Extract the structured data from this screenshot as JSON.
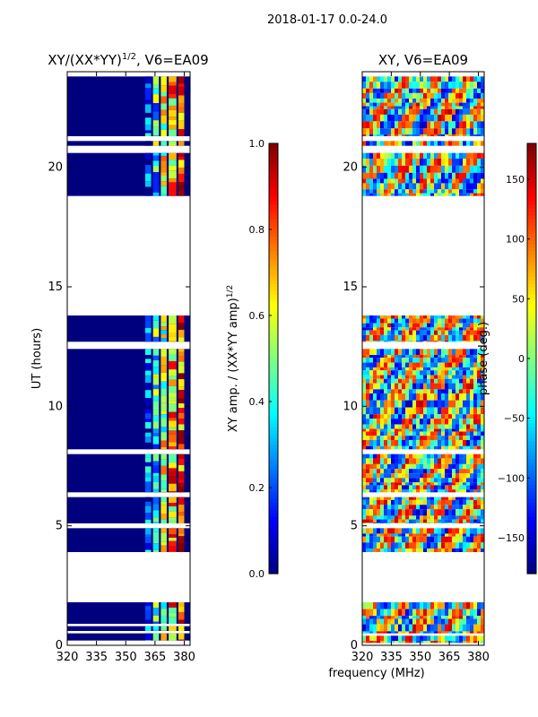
{
  "figure": {
    "suptitle": "2018-01-17 0.0-24.0",
    "common_xlabel": "frequency (MHz)",
    "colorscale": "jet",
    "colorscale_stops": [
      "#00007f",
      "#0000ff",
      "#007fff",
      "#00ffff",
      "#7fff7f",
      "#ffff00",
      "#ff7f00",
      "#ff0000",
      "#7f0000"
    ],
    "masked_color": "#ffffff",
    "frame_color": "#000000"
  },
  "chart_data": [
    {
      "type": "heatmap",
      "title_main": "XY/(XX*YY)",
      "title_exp": "1/2",
      "title_suffix": ", V6=EA09",
      "xlabel": "",
      "ylabel": "UT (hours)",
      "xlim": [
        320,
        383
      ],
      "ylim": [
        0,
        24
      ],
      "xticks": [
        320,
        335,
        350,
        365,
        380
      ],
      "yticks": [
        0,
        5,
        10,
        15,
        20
      ],
      "colorbar": {
        "label_main": "XY amp. / (XX*YY amp)",
        "label_exp": "1/2",
        "range": [
          0.0,
          1.0
        ],
        "ticks": [
          "0.0",
          "0.2",
          "0.4",
          "0.6",
          "0.8",
          "1.0"
        ],
        "tick_values": [
          0.0,
          0.2,
          0.4,
          0.6,
          0.8,
          1.0
        ]
      },
      "data_segments_hours": [
        [
          0.2,
          0.5
        ],
        [
          0.6,
          0.8
        ],
        [
          0.9,
          1.8
        ],
        [
          3.9,
          4.9
        ],
        [
          5.1,
          6.2
        ],
        [
          6.4,
          8.0
        ],
        [
          8.2,
          12.4
        ],
        [
          12.7,
          13.8
        ],
        [
          18.8,
          20.6
        ],
        [
          20.9,
          21.1
        ],
        [
          21.3,
          23.8
        ]
      ],
      "active_channel_bands_mhz": [
        [
          360,
          363
        ],
        [
          364,
          367
        ],
        [
          368,
          371
        ],
        [
          372,
          376
        ],
        [
          377,
          380
        ]
      ],
      "background_value": 0.0,
      "band_values": [
        0.2,
        0.4,
        0.55,
        0.7,
        0.8
      ]
    },
    {
      "type": "heatmap",
      "title": "XY, V6=EA09",
      "xlabel": "",
      "ylabel": "",
      "xlim": [
        320,
        383
      ],
      "ylim": [
        0,
        24
      ],
      "xticks": [
        320,
        335,
        350,
        365,
        380
      ],
      "yticks": [
        0,
        5,
        10,
        15,
        20
      ],
      "colorbar": {
        "label": "phase (deg.)",
        "range": [
          -180,
          180
        ],
        "ticks": [
          "150",
          "100",
          "50",
          "0",
          "−50",
          "−100",
          "−150"
        ],
        "tick_values": [
          150,
          100,
          50,
          0,
          -50,
          -100,
          -150
        ]
      },
      "data_segments_hours": [
        [
          0.1,
          0.4
        ],
        [
          0.5,
          1.8
        ],
        [
          3.9,
          4.9
        ],
        [
          5.1,
          6.2
        ],
        [
          6.4,
          8.0
        ],
        [
          8.2,
          12.4
        ],
        [
          12.7,
          13.8
        ],
        [
          18.8,
          20.6
        ],
        [
          20.9,
          21.1
        ],
        [
          21.3,
          23.8
        ]
      ],
      "value_range": [
        -180,
        180
      ]
    }
  ]
}
